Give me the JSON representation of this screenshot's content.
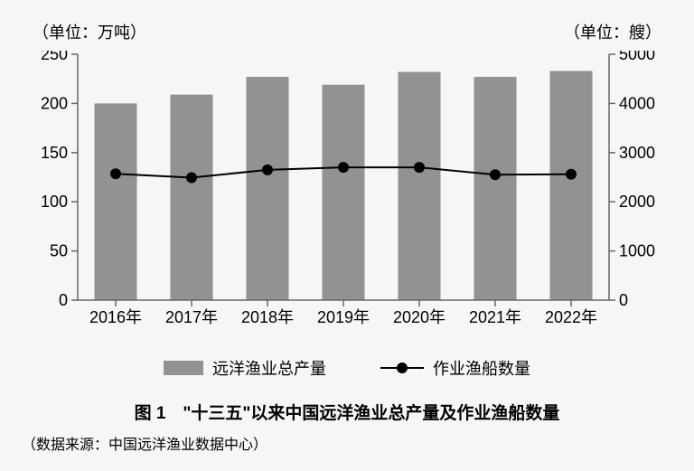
{
  "unit_left": "（单位：万吨）",
  "unit_right": "（单位：艘）",
  "chart": {
    "type": "bar+line",
    "categories": [
      "2016年",
      "2017年",
      "2018年",
      "2019年",
      "2020年",
      "2021年",
      "2022年"
    ],
    "bars": {
      "label": "远洋渔业总产量",
      "values": [
        200,
        209,
        227,
        219,
        232,
        227,
        233
      ],
      "color": "#929292",
      "y_axis": "left",
      "bar_width_ratio": 0.56
    },
    "line": {
      "label": "作业渔船数量",
      "values": [
        2570,
        2490,
        2650,
        2700,
        2700,
        2550,
        2560
      ],
      "color": "#000000",
      "marker": "circle",
      "marker_size": 6,
      "line_width": 2,
      "y_axis": "right"
    },
    "y_left": {
      "min": 0,
      "max": 250,
      "step": 50,
      "label_fontsize": 18
    },
    "y_right": {
      "min": 0,
      "max": 5000,
      "step": 1000,
      "label_fontsize": 18
    },
    "x_label_fontsize": 18,
    "background": "#f5f6f5",
    "axis_color": "#666666",
    "axis_width": 1.5,
    "tick_len": 7
  },
  "legend": {
    "bar_label": "远洋渔业总产量",
    "line_label": "作业渔船数量"
  },
  "caption": "图 1　\"十三五\"以来中国远洋渔业总产量及作业渔船数量",
  "source": "（数据来源：中国远洋渔业数据中心）"
}
